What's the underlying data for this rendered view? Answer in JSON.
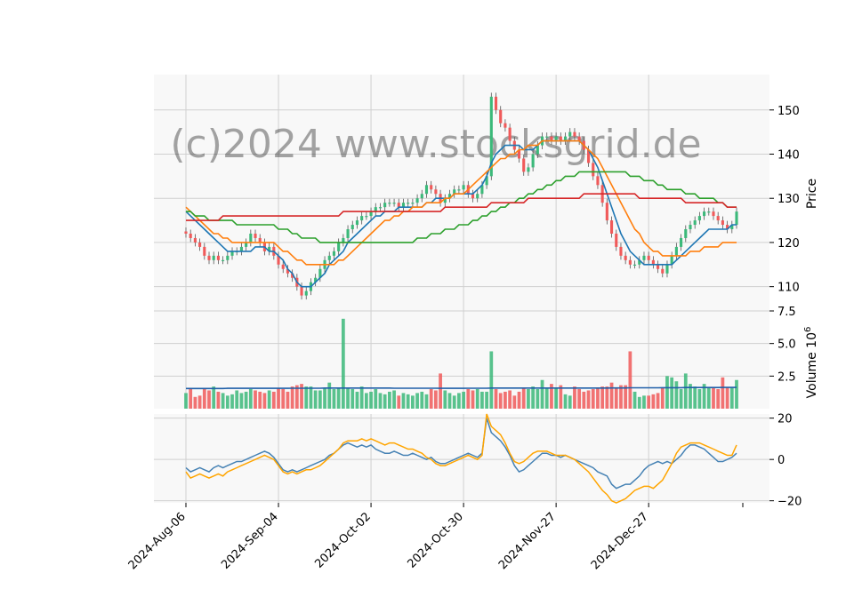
{
  "watermark": "(c)2024 www.stocksgrid.de",
  "colors": {
    "up": "#26a69a",
    "up_fill": "#3cb97a",
    "down": "#ef5350",
    "down_fill": "#f05a5a",
    "ma_fast": "#1f77b4",
    "ma_mid": "#ff7f0e",
    "ma_slow": "#2ca02c",
    "ma_long": "#d62728",
    "vol_avg": "#1f5fa8",
    "ind_a": "#4682b4",
    "ind_b": "#ffa500",
    "panel_bg": "#f8f8f8",
    "grid": "#d0d0d0"
  },
  "chart_data": {
    "type": "candlestick",
    "xlabel": "",
    "x_tick_labels": [
      "2024-Aug-06",
      "2024-Sep-04",
      "2024-Oct-02",
      "2024-Oct-30",
      "2024-Nov-27",
      "2024-Dec-27"
    ],
    "x_tick_index": [
      0,
      20,
      40,
      60,
      80,
      100
    ],
    "n_days": 120,
    "price_panel": {
      "ylabel": "Price",
      "ylim": [
        104.5,
        158
      ],
      "yticks": [
        110,
        120,
        130,
        140,
        150
      ],
      "closes": [
        122,
        121,
        120,
        119,
        117,
        116,
        117,
        116,
        116,
        117,
        118,
        118,
        119,
        120,
        122,
        121,
        120,
        118,
        119,
        117,
        115,
        114,
        113,
        112,
        110,
        108,
        109,
        111,
        112,
        114,
        116,
        117,
        118,
        120,
        121,
        123,
        124,
        125,
        126,
        126,
        127,
        128,
        128,
        129,
        129,
        129,
        128,
        129,
        129,
        129,
        130,
        131,
        133,
        132,
        131,
        129,
        130,
        131,
        132,
        132,
        133,
        131,
        130,
        131,
        133,
        135,
        153,
        150,
        147,
        146,
        143,
        141,
        139,
        136,
        137,
        140,
        142,
        144,
        144,
        143,
        144,
        143,
        144,
        145,
        144,
        143,
        141,
        138,
        135,
        133,
        129,
        125,
        122,
        119,
        117,
        116,
        115,
        115,
        116,
        117,
        116,
        115,
        114,
        113,
        115,
        117,
        119,
        121,
        123,
        124,
        125,
        126,
        127,
        127,
        126,
        125,
        124,
        123,
        124,
        127
      ],
      "series": [
        {
          "name": "",
          "color_key": "ma_fast",
          "values": [
            127,
            126,
            125,
            124,
            123,
            122,
            121,
            120,
            119,
            118,
            118,
            118,
            118,
            118,
            118,
            119,
            119,
            119,
            118,
            118,
            117,
            116,
            114,
            113,
            111,
            110,
            110,
            110,
            111,
            112,
            113,
            115,
            116,
            117,
            118,
            120,
            121,
            122,
            123,
            124,
            125,
            126,
            126,
            127,
            127,
            127,
            128,
            128,
            128,
            128,
            128,
            128,
            129,
            129,
            130,
            130,
            130,
            130,
            131,
            131,
            131,
            131,
            131,
            132,
            133,
            135,
            138,
            140,
            141,
            142,
            142,
            142,
            142,
            141,
            141,
            141,
            142,
            143,
            143,
            143,
            143,
            143,
            143,
            143,
            143,
            143,
            142,
            141,
            139,
            137,
            134,
            131,
            128,
            125,
            122,
            120,
            118,
            117,
            116,
            115,
            115,
            115,
            115,
            115,
            115,
            115,
            116,
            117,
            118,
            119,
            120,
            121,
            122,
            123,
            123,
            123,
            123,
            123,
            124,
            124
          ]
        },
        {
          "name": "",
          "color_key": "ma_mid",
          "values": [
            128,
            127,
            126,
            125,
            124,
            123,
            122,
            122,
            121,
            121,
            120,
            120,
            120,
            120,
            120,
            120,
            120,
            120,
            120,
            120,
            119,
            118,
            118,
            117,
            116,
            116,
            115,
            115,
            115,
            115,
            115,
            115,
            115,
            116,
            116,
            117,
            118,
            119,
            120,
            121,
            122,
            123,
            124,
            125,
            125,
            126,
            126,
            127,
            127,
            128,
            128,
            128,
            129,
            129,
            129,
            129,
            130,
            130,
            131,
            131,
            131,
            132,
            133,
            134,
            135,
            136,
            137,
            138,
            139,
            139,
            140,
            140,
            141,
            141,
            142,
            142,
            142,
            143,
            143,
            143,
            143,
            143,
            143,
            143,
            143,
            143,
            142,
            141,
            140,
            139,
            137,
            135,
            133,
            131,
            129,
            127,
            125,
            123,
            122,
            120,
            119,
            118,
            118,
            117,
            117,
            117,
            117,
            117,
            117,
            118,
            118,
            118,
            119,
            119,
            119,
            119,
            120,
            120,
            120,
            120
          ]
        },
        {
          "name": "",
          "color_key": "ma_slow",
          "values": [
            127,
            127,
            126,
            126,
            126,
            125,
            125,
            125,
            125,
            125,
            125,
            124,
            124,
            124,
            124,
            124,
            124,
            124,
            124,
            124,
            123,
            123,
            123,
            122,
            122,
            121,
            121,
            121,
            121,
            120,
            120,
            120,
            120,
            120,
            120,
            120,
            120,
            120,
            120,
            120,
            120,
            120,
            120,
            120,
            120,
            120,
            120,
            120,
            120,
            120,
            121,
            121,
            121,
            122,
            122,
            122,
            123,
            123,
            123,
            124,
            124,
            124,
            125,
            125,
            126,
            126,
            127,
            127,
            128,
            128,
            129,
            129,
            130,
            130,
            131,
            131,
            132,
            132,
            133,
            133,
            134,
            134,
            135,
            135,
            135,
            136,
            136,
            136,
            136,
            136,
            136,
            136,
            136,
            136,
            136,
            136,
            135,
            135,
            135,
            134,
            134,
            134,
            133,
            133,
            132,
            132,
            132,
            132,
            131,
            131,
            131,
            130,
            130,
            130,
            130,
            129,
            129,
            128,
            128,
            128
          ]
        },
        {
          "name": "",
          "color_key": "ma_long",
          "values": [
            125,
            125,
            125,
            125,
            125,
            125,
            125,
            125,
            126,
            126,
            126,
            126,
            126,
            126,
            126,
            126,
            126,
            126,
            126,
            126,
            126,
            126,
            126,
            126,
            126,
            126,
            126,
            126,
            126,
            126,
            126,
            126,
            126,
            126,
            127,
            127,
            127,
            127,
            127,
            127,
            127,
            127,
            127,
            127,
            127,
            127,
            127,
            127,
            127,
            127,
            127,
            127,
            127,
            127,
            127,
            127,
            128,
            128,
            128,
            128,
            128,
            128,
            128,
            128,
            128,
            128,
            129,
            129,
            129,
            129,
            129,
            129,
            129,
            129,
            130,
            130,
            130,
            130,
            130,
            130,
            130,
            130,
            130,
            130,
            130,
            130,
            131,
            131,
            131,
            131,
            131,
            131,
            131,
            131,
            131,
            131,
            131,
            131,
            130,
            130,
            130,
            130,
            130,
            130,
            130,
            130,
            130,
            130,
            129,
            129,
            129,
            129,
            129,
            129,
            129,
            129,
            129,
            128,
            128,
            128
          ]
        }
      ]
    },
    "volume_panel": {
      "ylabel": "Volume  10^6",
      "ylim": [
        0,
        7.5
      ],
      "yticks": [
        2.5,
        5.0,
        7.5
      ],
      "values": [
        1.2,
        1.5,
        0.9,
        1.0,
        1.5,
        1.4,
        1.7,
        1.3,
        1.2,
        1.0,
        1.1,
        1.4,
        1.2,
        1.3,
        1.5,
        1.4,
        1.3,
        1.2,
        1.4,
        1.3,
        1.6,
        1.5,
        1.3,
        1.7,
        1.8,
        1.9,
        1.7,
        1.7,
        1.4,
        1.4,
        1.6,
        2.0,
        1.5,
        1.6,
        6.9,
        1.6,
        1.5,
        1.3,
        1.7,
        1.2,
        1.3,
        1.5,
        1.2,
        1.1,
        1.3,
        1.4,
        1.0,
        1.2,
        1.1,
        1.0,
        1.2,
        1.3,
        1.1,
        1.5,
        1.4,
        2.7,
        1.4,
        1.2,
        1.0,
        1.2,
        1.3,
        1.5,
        1.4,
        1.5,
        1.3,
        1.3,
        4.4,
        1.5,
        1.2,
        1.3,
        1.4,
        1.0,
        1.3,
        1.6,
        1.5,
        1.7,
        1.5,
        2.2,
        1.6,
        1.9,
        1.6,
        1.8,
        1.1,
        1.0,
        1.7,
        1.5,
        1.3,
        1.4,
        1.5,
        1.6,
        1.7,
        1.7,
        2.0,
        1.6,
        1.8,
        1.8,
        4.4,
        1.3,
        0.9,
        1.0,
        1.0,
        1.1,
        1.2,
        1.6,
        2.5,
        2.4,
        2.1,
        1.5,
        2.7,
        1.9,
        1.7,
        1.5,
        1.9,
        1.6,
        1.6,
        1.5,
        2.4,
        1.6,
        1.6,
        2.2
      ],
      "avg": [
        1.55,
        1.55,
        1.55,
        1.55,
        1.55,
        1.55,
        1.55,
        1.55,
        1.55,
        1.56,
        1.56,
        1.56,
        1.56,
        1.56,
        1.56,
        1.56,
        1.56,
        1.56,
        1.56,
        1.56,
        1.56,
        1.56,
        1.56,
        1.57,
        1.57,
        1.57,
        1.57,
        1.57,
        1.57,
        1.57,
        1.58,
        1.58,
        1.58,
        1.58,
        1.58,
        1.58,
        1.58,
        1.58,
        1.58,
        1.58,
        1.58,
        1.58,
        1.58,
        1.58,
        1.58,
        1.57,
        1.57,
        1.57,
        1.57,
        1.57,
        1.57,
        1.57,
        1.57,
        1.57,
        1.57,
        1.56,
        1.56,
        1.56,
        1.56,
        1.56,
        1.56,
        1.57,
        1.57,
        1.57,
        1.57,
        1.57,
        1.58,
        1.58,
        1.58,
        1.58,
        1.58,
        1.58,
        1.58,
        1.58,
        1.58,
        1.58,
        1.58,
        1.58,
        1.58,
        1.58,
        1.58,
        1.58,
        1.58,
        1.58,
        1.58,
        1.58,
        1.58,
        1.58,
        1.58,
        1.58,
        1.58,
        1.58,
        1.59,
        1.59,
        1.59,
        1.59,
        1.6,
        1.6,
        1.6,
        1.6,
        1.6,
        1.6,
        1.6,
        1.61,
        1.61,
        1.61,
        1.61,
        1.61,
        1.62,
        1.62,
        1.62,
        1.62,
        1.62,
        1.62,
        1.62,
        1.62,
        1.63,
        1.63,
        1.63,
        1.63
      ]
    },
    "indicator_panel": {
      "ylabel": "",
      "ylim": [
        -21,
        22
      ],
      "yticks": [
        -20,
        0,
        20
      ],
      "series": [
        {
          "name": "",
          "color_key": "ind_a",
          "values": [
            -4,
            -6,
            -5,
            -4,
            -5,
            -6,
            -4,
            -3,
            -4,
            -3,
            -2,
            -1,
            -1,
            0,
            1,
            2,
            3,
            4,
            3,
            1,
            -2,
            -5,
            -6,
            -5,
            -6,
            -5,
            -4,
            -3,
            -2,
            -1,
            0,
            2,
            3,
            5,
            7,
            8,
            7,
            6,
            7,
            6,
            7,
            5,
            4,
            3,
            3,
            4,
            3,
            2,
            2,
            3,
            2,
            1,
            0,
            1,
            -1,
            -2,
            -2,
            -1,
            0,
            1,
            2,
            3,
            2,
            1,
            3,
            20,
            13,
            11,
            9,
            6,
            2,
            -3,
            -6,
            -5,
            -3,
            -1,
            1,
            3,
            3,
            2,
            2,
            1,
            2,
            1,
            0,
            -1,
            -2,
            -3,
            -4,
            -6,
            -7,
            -8,
            -12,
            -14,
            -13,
            -12,
            -12,
            -10,
            -8,
            -5,
            -3,
            -2,
            -1,
            -2,
            -1,
            -2,
            0,
            2,
            5,
            7,
            7,
            6,
            5,
            3,
            1,
            -1,
            -1,
            0,
            1,
            3
          ]
        },
        {
          "name": "",
          "color_key": "ind_b",
          "values": [
            -6,
            -9,
            -8,
            -7,
            -8,
            -9,
            -8,
            -7,
            -8,
            -6,
            -5,
            -4,
            -3,
            -2,
            -1,
            0,
            1,
            2,
            1,
            0,
            -3,
            -6,
            -7,
            -6,
            -7,
            -6,
            -5,
            -5,
            -4,
            -3,
            -1,
            1,
            3,
            5,
            8,
            9,
            9,
            9,
            10,
            9,
            10,
            9,
            8,
            7,
            8,
            8,
            7,
            6,
            5,
            5,
            4,
            3,
            1,
            0,
            -2,
            -3,
            -3,
            -2,
            -1,
            0,
            1,
            2,
            1,
            0,
            2,
            22,
            16,
            14,
            12,
            8,
            3,
            -1,
            -2,
            -1,
            1,
            3,
            4,
            4,
            4,
            3,
            2,
            2,
            2,
            1,
            0,
            -2,
            -4,
            -6,
            -9,
            -12,
            -15,
            -17,
            -20,
            -21,
            -20,
            -19,
            -17,
            -15,
            -14,
            -13,
            -13,
            -14,
            -12,
            -10,
            -6,
            -2,
            3,
            6,
            7,
            8,
            8,
            8,
            7,
            6,
            5,
            4,
            3,
            2,
            2,
            7
          ]
        }
      ]
    },
    "grid": true,
    "legend": "none"
  }
}
